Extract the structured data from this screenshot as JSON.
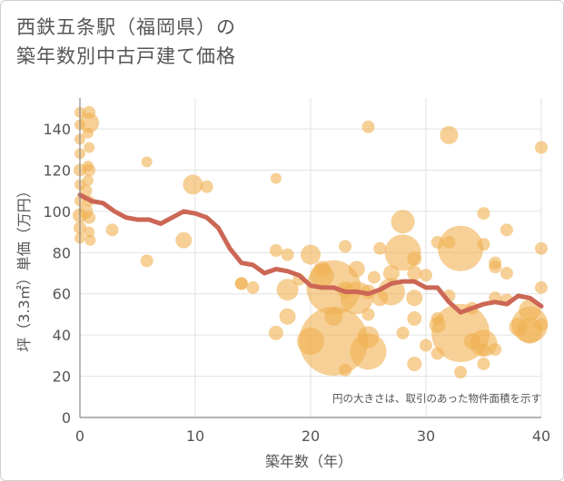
{
  "title_line1": "西鉄五条駅（福岡県）の",
  "title_line2": "築年数別中古戸建て価格",
  "chart_data": {
    "type": "scatter",
    "xlabel": "築年数（年）",
    "ylabel": "坪（3.3㎡）単価（万円）",
    "xlim": [
      0,
      40
    ],
    "ylim": [
      0,
      155
    ],
    "xticks": [
      0,
      10,
      20,
      30,
      40
    ],
    "yticks": [
      0,
      20,
      40,
      60,
      80,
      100,
      120,
      140
    ],
    "grid": true,
    "annotation": "円の大きさは、取引のあった物件面積を示す",
    "colors": {
      "bubble": "#f0b050",
      "line": "#cc6655"
    },
    "points": [
      {
        "x": 0,
        "y": 148,
        "s": 6
      },
      {
        "x": 0,
        "y": 142,
        "s": 6
      },
      {
        "x": 0,
        "y": 135,
        "s": 6
      },
      {
        "x": 0,
        "y": 128,
        "s": 6
      },
      {
        "x": 0,
        "y": 120,
        "s": 7
      },
      {
        "x": 0,
        "y": 113,
        "s": 6
      },
      {
        "x": 0,
        "y": 105,
        "s": 6
      },
      {
        "x": 0,
        "y": 98,
        "s": 8
      },
      {
        "x": 0,
        "y": 92,
        "s": 7
      },
      {
        "x": 0,
        "y": 87,
        "s": 6
      },
      {
        "x": 0.5,
        "y": 100,
        "s": 8
      },
      {
        "x": 0.5,
        "y": 110,
        "s": 7
      },
      {
        "x": 0.8,
        "y": 143,
        "s": 11
      },
      {
        "x": 0.8,
        "y": 148,
        "s": 7
      },
      {
        "x": 0.7,
        "y": 138,
        "s": 6
      },
      {
        "x": 0.8,
        "y": 131,
        "s": 6
      },
      {
        "x": 0.7,
        "y": 122,
        "s": 6
      },
      {
        "x": 0.8,
        "y": 120,
        "s": 7
      },
      {
        "x": 0.7,
        "y": 115,
        "s": 6
      },
      {
        "x": 0.8,
        "y": 105,
        "s": 6
      },
      {
        "x": 0.8,
        "y": 97,
        "s": 7
      },
      {
        "x": 0.8,
        "y": 90,
        "s": 6
      },
      {
        "x": 0.9,
        "y": 86,
        "s": 6
      },
      {
        "x": 2.8,
        "y": 91,
        "s": 7
      },
      {
        "x": 5.8,
        "y": 124,
        "s": 6
      },
      {
        "x": 5.8,
        "y": 76,
        "s": 7
      },
      {
        "x": 9,
        "y": 86,
        "s": 9
      },
      {
        "x": 9.8,
        "y": 113,
        "s": 11
      },
      {
        "x": 11,
        "y": 112,
        "s": 7
      },
      {
        "x": 14,
        "y": 65,
        "s": 7
      },
      {
        "x": 14,
        "y": 65,
        "s": 7
      },
      {
        "x": 15,
        "y": 63,
        "s": 7
      },
      {
        "x": 17,
        "y": 116,
        "s": 6
      },
      {
        "x": 17,
        "y": 81,
        "s": 7
      },
      {
        "x": 17,
        "y": 41,
        "s": 8
      },
      {
        "x": 18,
        "y": 79,
        "s": 7
      },
      {
        "x": 18,
        "y": 62,
        "s": 12
      },
      {
        "x": 18,
        "y": 49,
        "s": 9
      },
      {
        "x": 19,
        "y": 67,
        "s": 7
      },
      {
        "x": 20,
        "y": 79,
        "s": 11
      },
      {
        "x": 20,
        "y": 37,
        "s": 15
      },
      {
        "x": 21,
        "y": 69,
        "s": 13
      },
      {
        "x": 21,
        "y": 72,
        "s": 9
      },
      {
        "x": 22,
        "y": 63,
        "s": 30
      },
      {
        "x": 22,
        "y": 37,
        "s": 38
      },
      {
        "x": 22,
        "y": 49,
        "s": 10
      },
      {
        "x": 23,
        "y": 83,
        "s": 7
      },
      {
        "x": 23,
        "y": 62,
        "s": 9
      },
      {
        "x": 23,
        "y": 23,
        "s": 7
      },
      {
        "x": 24,
        "y": 72,
        "s": 9
      },
      {
        "x": 24,
        "y": 58,
        "s": 18
      },
      {
        "x": 25,
        "y": 141,
        "s": 7
      },
      {
        "x": 25,
        "y": 61,
        "s": 8
      },
      {
        "x": 25,
        "y": 50,
        "s": 7
      },
      {
        "x": 25,
        "y": 39,
        "s": 12
      },
      {
        "x": 25,
        "y": 32,
        "s": 20
      },
      {
        "x": 25.5,
        "y": 68,
        "s": 7
      },
      {
        "x": 26,
        "y": 82,
        "s": 7
      },
      {
        "x": 26,
        "y": 58,
        "s": 9
      },
      {
        "x": 27,
        "y": 61,
        "s": 15
      },
      {
        "x": 27,
        "y": 70,
        "s": 9
      },
      {
        "x": 28,
        "y": 95,
        "s": 13
      },
      {
        "x": 28,
        "y": 80,
        "s": 20
      },
      {
        "x": 28,
        "y": 41,
        "s": 7
      },
      {
        "x": 29,
        "y": 77,
        "s": 8
      },
      {
        "x": 29,
        "y": 70,
        "s": 8
      },
      {
        "x": 29,
        "y": 58,
        "s": 9
      },
      {
        "x": 29,
        "y": 48,
        "s": 8
      },
      {
        "x": 29,
        "y": 26,
        "s": 8
      },
      {
        "x": 30,
        "y": 69,
        "s": 7
      },
      {
        "x": 30,
        "y": 35,
        "s": 7
      },
      {
        "x": 31,
        "y": 85,
        "s": 7
      },
      {
        "x": 31,
        "y": 48,
        "s": 7
      },
      {
        "x": 31,
        "y": 45,
        "s": 9
      },
      {
        "x": 31,
        "y": 31,
        "s": 7
      },
      {
        "x": 32,
        "y": 137,
        "s": 10
      },
      {
        "x": 32,
        "y": 85,
        "s": 7
      },
      {
        "x": 32,
        "y": 59,
        "s": 7
      },
      {
        "x": 33,
        "y": 82,
        "s": 25
      },
      {
        "x": 33,
        "y": 41,
        "s": 32
      },
      {
        "x": 33,
        "y": 22,
        "s": 7
      },
      {
        "x": 34,
        "y": 53,
        "s": 7
      },
      {
        "x": 34,
        "y": 37,
        "s": 9
      },
      {
        "x": 35,
        "y": 99,
        "s": 7
      },
      {
        "x": 35,
        "y": 84,
        "s": 7
      },
      {
        "x": 35,
        "y": 36,
        "s": 15
      },
      {
        "x": 35,
        "y": 26,
        "s": 7
      },
      {
        "x": 35,
        "y": 33,
        "s": 7
      },
      {
        "x": 36,
        "y": 75,
        "s": 7
      },
      {
        "x": 36,
        "y": 73,
        "s": 7
      },
      {
        "x": 36,
        "y": 58,
        "s": 7
      },
      {
        "x": 36,
        "y": 33,
        "s": 7
      },
      {
        "x": 37,
        "y": 91,
        "s": 7
      },
      {
        "x": 37,
        "y": 70,
        "s": 7
      },
      {
        "x": 37,
        "y": 57,
        "s": 7
      },
      {
        "x": 38,
        "y": 44,
        "s": 10
      },
      {
        "x": 39,
        "y": 52,
        "s": 12
      },
      {
        "x": 39,
        "y": 45,
        "s": 20
      },
      {
        "x": 39,
        "y": 42,
        "s": 14
      },
      {
        "x": 40,
        "y": 131,
        "s": 7
      },
      {
        "x": 40,
        "y": 82,
        "s": 7
      },
      {
        "x": 40,
        "y": 63,
        "s": 7
      },
      {
        "x": 40,
        "y": 45,
        "s": 7
      }
    ],
    "trend": {
      "x": [
        0,
        1,
        2,
        3,
        4,
        5,
        6,
        7,
        8,
        9,
        10,
        11,
        12,
        13,
        14,
        15,
        16,
        17,
        18,
        19,
        20,
        21,
        22,
        23,
        24,
        25,
        26,
        27,
        28,
        29,
        30,
        31,
        32,
        33,
        34,
        35,
        36,
        37,
        38,
        39,
        40
      ],
      "y": [
        108,
        105,
        104,
        100,
        97,
        96,
        96,
        94,
        97,
        100,
        99,
        97,
        92,
        82,
        75,
        74,
        70,
        72,
        71,
        69,
        64,
        63,
        63,
        61,
        61,
        60,
        62,
        65,
        66,
        66,
        63,
        63,
        56,
        51,
        53,
        55,
        56,
        55,
        59,
        58,
        54
      ]
    }
  }
}
